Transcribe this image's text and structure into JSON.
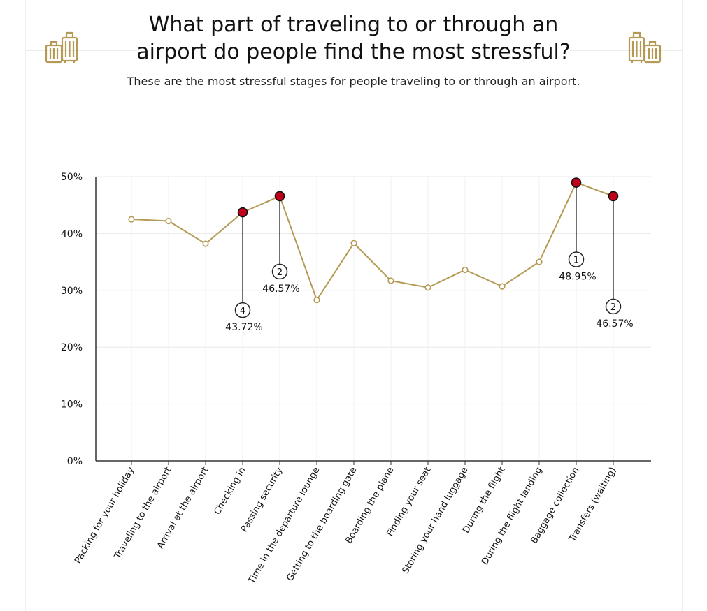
{
  "title_lines": [
    "What part of traveling to or through an",
    "airport do people find the most stressful?"
  ],
  "subtitle": "These are the most stressful stages for people traveling to or through an airport.",
  "icons": {
    "left": "luggage-icon",
    "right": "luggage-icon"
  },
  "colors": {
    "line": "#b59a55",
    "highlight": "#c0001a",
    "icon": "#b59a55",
    "axis": "#333333",
    "grid": "#e8e8e8"
  },
  "chart_data": {
    "type": "line",
    "title": "What part of traveling to or through an airport do people find the most stressful?",
    "subtitle": "These are the most stressful stages for people traveling to or through an airport.",
    "xlabel": "",
    "ylabel": "",
    "ylim": [
      0,
      50
    ],
    "yticks": [
      0,
      10,
      20,
      30,
      40,
      50
    ],
    "ytick_labels": [
      "0%",
      "10%",
      "20%",
      "30%",
      "40%",
      "50%"
    ],
    "grid": true,
    "categories": [
      "Packing for your holiday",
      "Traveling to the airport",
      "Arrival at the airport",
      "Checking in",
      "Passing security",
      "Time in the departure lounge",
      "Getting to the boarding gate",
      "Boarding the plane",
      "Finding your seat",
      "Storing your hand luggage",
      "During the flight",
      "During the flight landing",
      "Baggage collection",
      "Transfers (waiting)"
    ],
    "values": [
      42.5,
      42.2,
      38.2,
      43.72,
      46.57,
      28.3,
      38.3,
      31.7,
      30.5,
      33.6,
      30.7,
      35.0,
      48.95,
      46.57
    ],
    "annotations": [
      {
        "index": 3,
        "rank": "4",
        "label": "43.72%"
      },
      {
        "index": 4,
        "rank": "2",
        "label": "46.57%"
      },
      {
        "index": 12,
        "rank": "1",
        "label": "48.95%"
      },
      {
        "index": 13,
        "rank": "2",
        "label": "46.57%"
      }
    ]
  }
}
